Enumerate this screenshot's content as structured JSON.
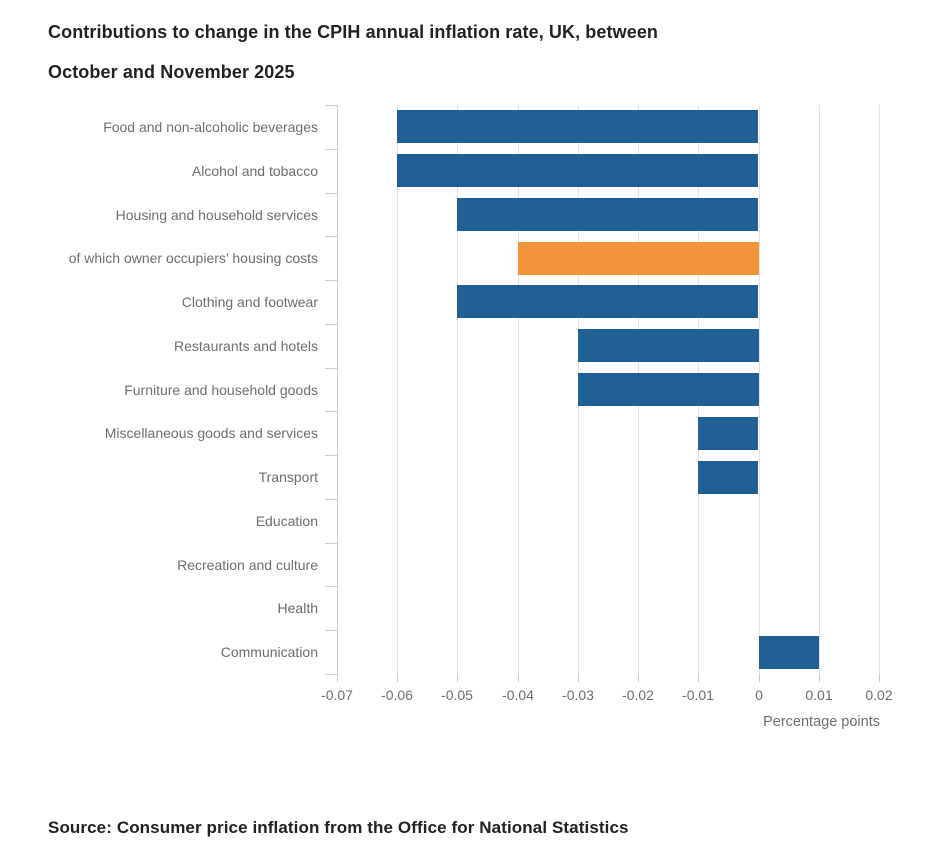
{
  "title": {
    "line1": "Contributions to change in the CPIH annual inflation rate, UK, between",
    "line2": "October and November 2025"
  },
  "source": "Source: Consumer price inflation from the Office for National Statistics",
  "chart_data": {
    "type": "bar",
    "orientation": "horizontal",
    "title": "Contributions to change in the CPIH annual inflation rate, UK, between October and November 2025",
    "xlabel": "Percentage points",
    "ylabel": "",
    "xlim": [
      -0.07,
      0.0235
    ],
    "grid": true,
    "legend": "none",
    "categories": [
      "Food and non-alcoholic beverages",
      "Alcohol and tobacco",
      "Housing and household services",
      "of which owner occupiers’ housing costs",
      "Clothing and footwear",
      "Restaurants and hotels",
      "Furniture and household goods",
      "Miscellaneous goods and services",
      "Transport",
      "Education",
      "Recreation and culture",
      "Health",
      "Communication"
    ],
    "values": [
      -0.06,
      -0.06,
      -0.05,
      -0.04,
      -0.05,
      -0.03,
      -0.03,
      -0.01,
      -0.01,
      0,
      0,
      0,
      0.01
    ],
    "highlight_index": 3,
    "colors": {
      "bar_default": "#206095",
      "bar_highlight": "#f2943a",
      "gridline": "#e4e4e6",
      "axis": "#c9ccd2",
      "label_text": "#6e6e6e",
      "title_text": "#222222"
    },
    "x_ticks": [
      -0.07,
      -0.06,
      -0.05,
      -0.04,
      -0.03,
      -0.02,
      -0.01,
      0,
      0.01,
      0.02
    ],
    "x_tick_labels": [
      "-0.07",
      "-0.06",
      "-0.05",
      "-0.04",
      "-0.03",
      "-0.02",
      "-0.01",
      "0",
      "0.01",
      "0.02"
    ]
  }
}
